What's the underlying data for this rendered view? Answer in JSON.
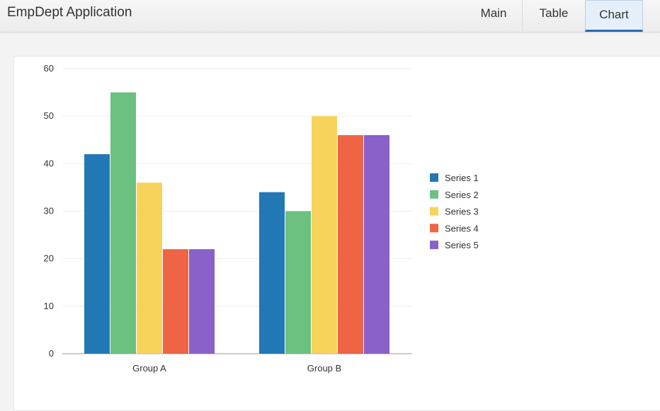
{
  "header": {
    "title": "EmpDept Application",
    "tabs": [
      {
        "label": "Main",
        "active": false
      },
      {
        "label": "Table",
        "active": false
      },
      {
        "label": "Chart",
        "active": true
      }
    ]
  },
  "colors": {
    "series": [
      "#2278b5",
      "#6cc080",
      "#f7d35c",
      "#ee6445",
      "#8a60c9"
    ],
    "grid": "#eeeeee",
    "axis": "#cccccc"
  },
  "chart_data": {
    "type": "bar",
    "categories": [
      "Group A",
      "Group B"
    ],
    "series": [
      {
        "name": "Series 1",
        "values": [
          42,
          34
        ]
      },
      {
        "name": "Series 2",
        "values": [
          55,
          30
        ]
      },
      {
        "name": "Series 3",
        "values": [
          36,
          50
        ]
      },
      {
        "name": "Series 4",
        "values": [
          22,
          46
        ]
      },
      {
        "name": "Series 5",
        "values": [
          22,
          46
        ]
      }
    ],
    "yticks": [
      0,
      10,
      20,
      30,
      40,
      50,
      60
    ],
    "ylim": [
      0,
      60
    ],
    "grid": true,
    "legend": "right"
  }
}
